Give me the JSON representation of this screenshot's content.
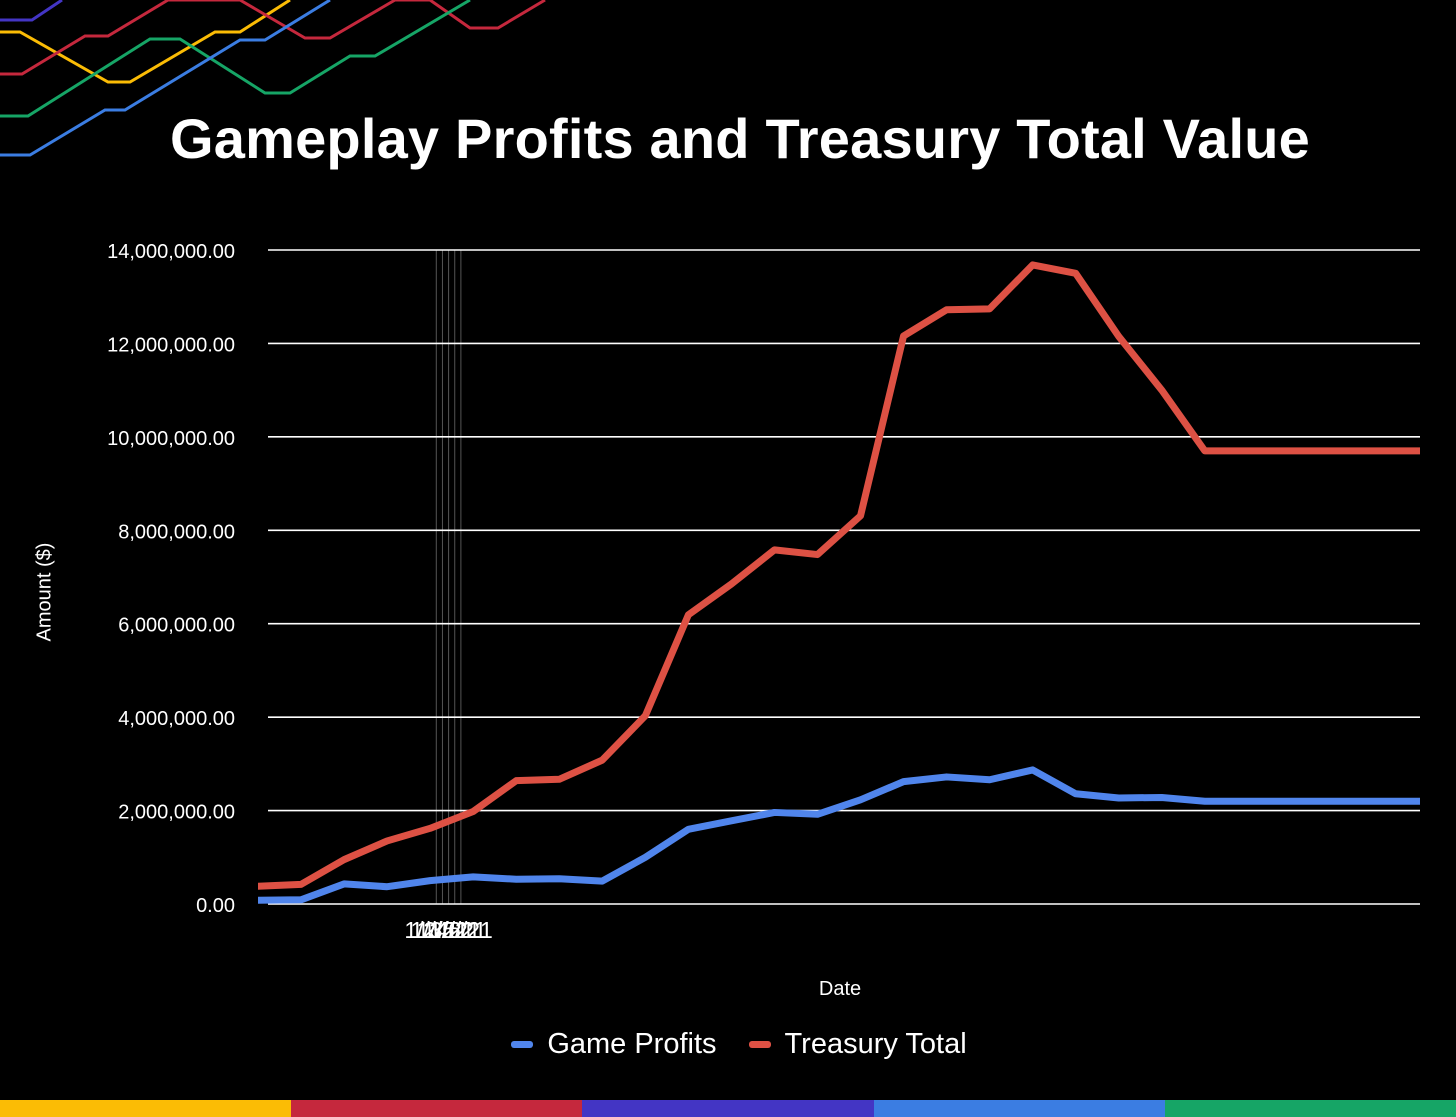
{
  "chart_data": {
    "type": "line",
    "title": "Gameplay Profits and Treasury Total Value",
    "xlabel": "Date",
    "ylabel": "Amount ($)",
    "x_ticks": [
      "1/2/21",
      "1/3/21",
      "1/4/21",
      "1/5/21",
      "1/6/21"
    ],
    "y_ticks": [
      "0.00",
      "2,000,000.00",
      "4,000,000.00",
      "6,000,000.00",
      "8,000,000.00",
      "10,000,000.00",
      "12,000,000.00",
      "14,000,000.00"
    ],
    "ylim": [
      0,
      14000000
    ],
    "x": [
      "2020-12-04",
      "2020-12-11",
      "2020-12-18",
      "2020-12-25",
      "2021-01-01",
      "2021-01-08",
      "2021-01-15",
      "2021-01-22",
      "2021-01-29",
      "2021-02-05",
      "2021-02-12",
      "2021-02-19",
      "2021-02-26",
      "2021-03-05",
      "2021-03-12",
      "2021-03-19",
      "2021-03-26",
      "2021-04-02",
      "2021-04-09",
      "2021-04-16",
      "2021-04-23",
      "2021-04-30",
      "2021-05-07",
      "2021-05-14",
      "2021-05-21",
      "2021-05-28",
      "2021-06-04",
      "2021-06-11"
    ],
    "series": [
      {
        "name": "Game Profits",
        "color": "#5085ec",
        "values": [
          80000,
          90000,
          430000,
          370000,
          500000,
          580000,
          530000,
          540000,
          490000,
          1000000,
          1600000,
          1780000,
          1960000,
          1920000,
          2230000,
          2620000,
          2720000,
          2660000,
          2870000,
          2360000,
          2270000,
          2280000,
          2200000,
          2200000,
          2200000,
          2200000,
          2200000,
          2200000
        ]
      },
      {
        "name": "Treasury Total",
        "color": "#dd5144",
        "values": [
          380000,
          420000,
          950000,
          1350000,
          1620000,
          1980000,
          2640000,
          2670000,
          3080000,
          4030000,
          6190000,
          6850000,
          7580000,
          7480000,
          8310000,
          12160000,
          12720000,
          12740000,
          13680000,
          13500000,
          12150000,
          11000000,
          9700000,
          9700000,
          9700000,
          9700000,
          9700000,
          9700000
        ]
      }
    ],
    "grid": true,
    "legend": "bottom-center"
  },
  "colors": {
    "background": "#000000",
    "gridline": "#ffffff",
    "bottom_bar": [
      "#fbbc05",
      "#c5283d",
      "#4335c4",
      "#3b7de2",
      "#16a566"
    ],
    "decor": [
      "#4335c4",
      "#fbbc05",
      "#c5283d",
      "#16a566",
      "#3b7de2"
    ]
  }
}
